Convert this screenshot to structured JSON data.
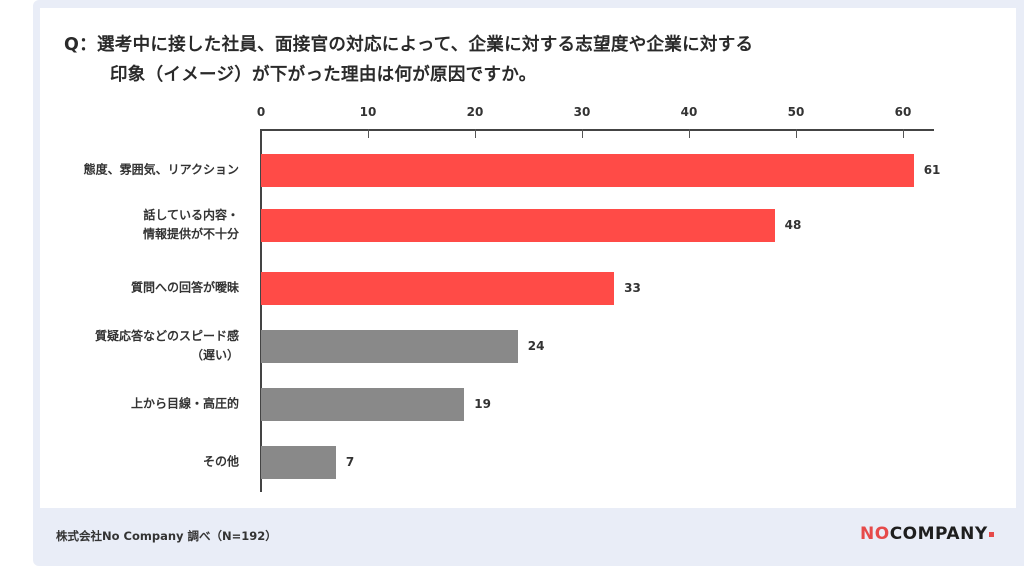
{
  "title": {
    "line1": "Q：選考中に接した社員、面接官の対応によって、企業に対する志望度や企業に対する",
    "line2": "印象（イメージ）が下がった理由は何が原因ですか。"
  },
  "footer": {
    "source": "株式会社No Company 調べ（N=192）",
    "logo_no": "NO",
    "logo_company": "COMPANY"
  },
  "colors": {
    "highlight": "#ff4b47",
    "neutral": "#898989",
    "frame": "#e9edf7"
  },
  "chart_data": {
    "type": "bar",
    "orientation": "horizontal",
    "title": "Q：選考中に接した社員、面接官の対応によって、企業に対する志望度や企業に対する印象（イメージ）が下がった理由は何が原因ですか。",
    "xlabel": "",
    "ylabel": "",
    "xlim": [
      0,
      62
    ],
    "x_ticks": [
      0,
      10,
      20,
      30,
      40,
      50,
      60
    ],
    "x_axis_position": "top",
    "grid": false,
    "legend": null,
    "categories": [
      "態度、雰囲気、リアクション",
      "話している内容・\n情報提供が不十分",
      "質問への回答が曖昧",
      "質疑応答などのスピード感\n（遅い）",
      "上から目線・高圧的",
      "その他"
    ],
    "values": [
      61,
      48,
      33,
      24,
      19,
      7
    ],
    "bar_colors": [
      "#ff4b47",
      "#ff4b47",
      "#ff4b47",
      "#898989",
      "#898989",
      "#898989"
    ],
    "data_labels": [
      "61",
      "48",
      "33",
      "24",
      "19",
      "7"
    ],
    "annotation": "株式会社No Company 調べ（N=192）"
  }
}
